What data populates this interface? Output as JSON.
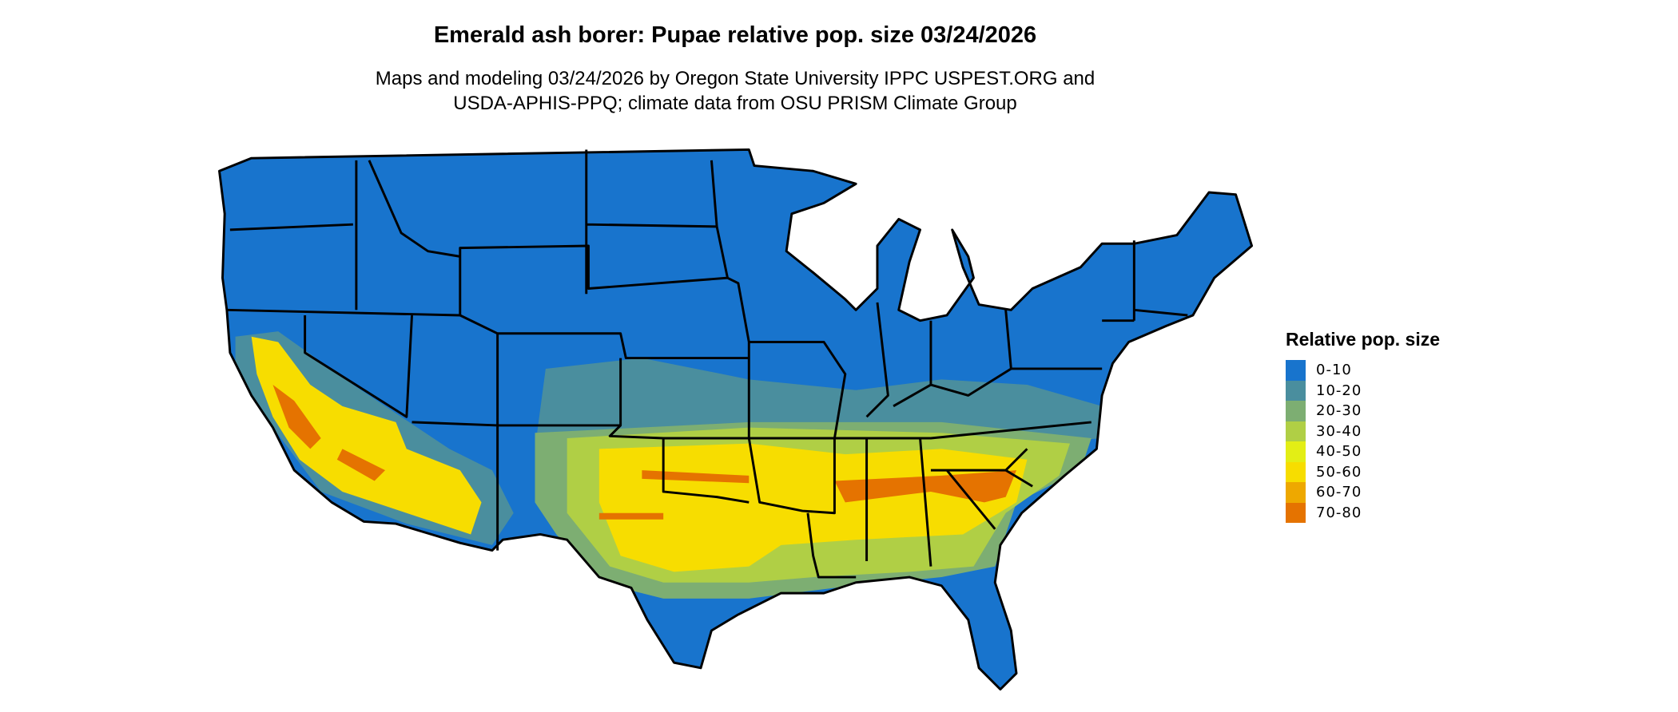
{
  "title": "Emerald ash borer: Pupae relative pop. size 03/24/2026",
  "subtitle_line1": "Maps and modeling 03/24/2026 by Oregon State University IPPC USPEST.ORG and",
  "subtitle_line2": "USDA-APHIS-PPQ; climate data from OSU PRISM Climate Group",
  "legend": {
    "title": "Relative pop. size",
    "items": [
      {
        "label": "0-10",
        "color": "#1874CD"
      },
      {
        "label": "10-20",
        "color": "#4A8E9E"
      },
      {
        "label": "20-30",
        "color": "#7DAE72"
      },
      {
        "label": "30-40",
        "color": "#B0CF45"
      },
      {
        "label": "40-50",
        "color": "#E3EE15"
      },
      {
        "label": "50-60",
        "color": "#F7DD00"
      },
      {
        "label": "60-70",
        "color": "#EEA800"
      },
      {
        "label": "70-80",
        "color": "#E57300"
      }
    ]
  }
}
